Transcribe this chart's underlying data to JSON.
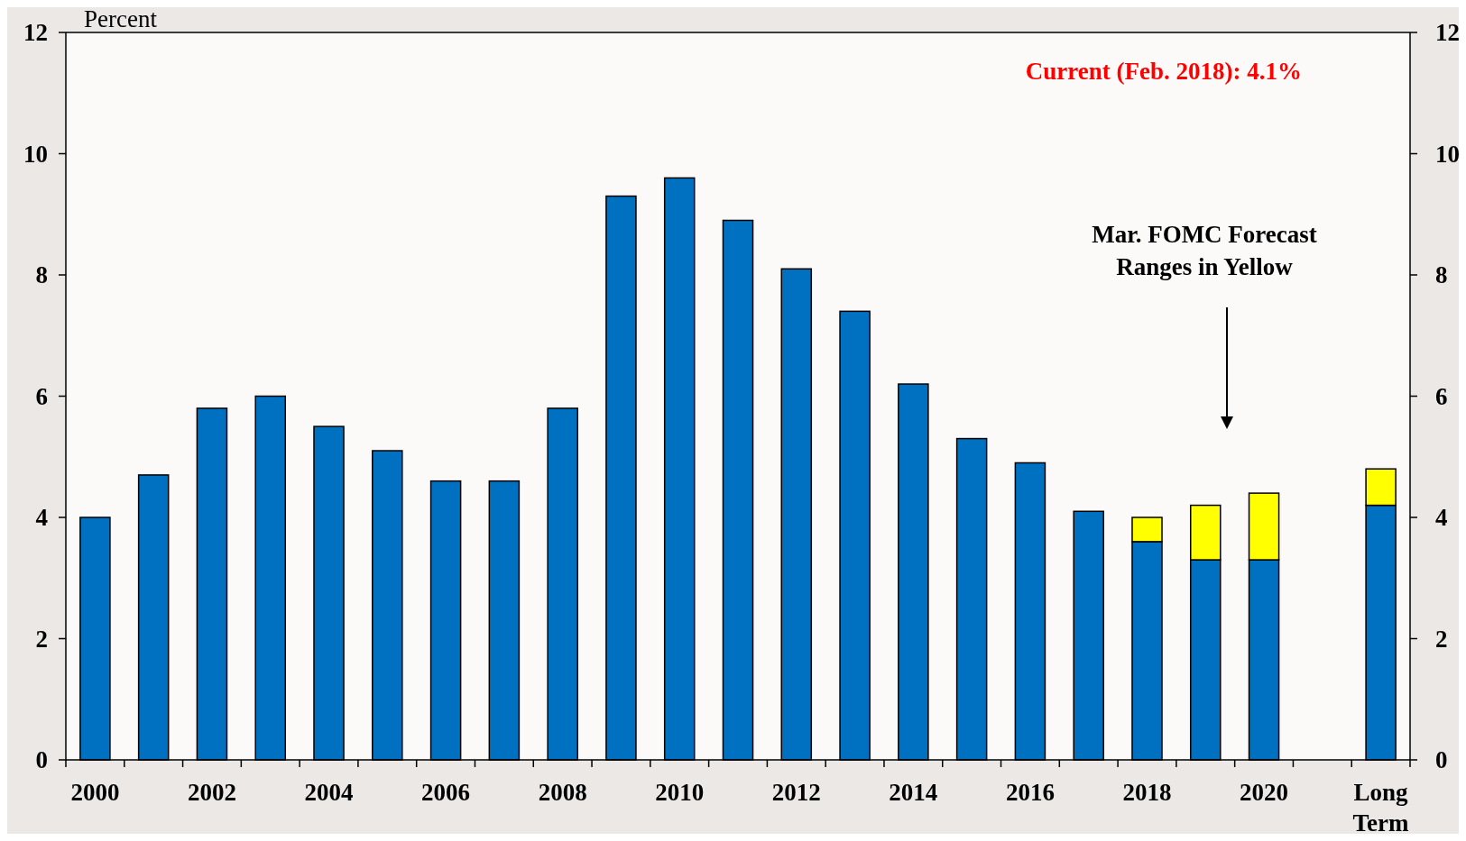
{
  "chart_data": {
    "type": "bar",
    "stacked": true,
    "ylabel": "Percent",
    "categories": [
      "2000",
      null,
      "2002",
      null,
      "2004",
      null,
      "2006",
      null,
      "2008",
      null,
      "2010",
      null,
      "2012",
      null,
      "2014",
      null,
      "2016",
      null,
      "2018",
      null,
      "2020",
      null,
      "Long Term"
    ],
    "series": [
      {
        "color": "#0070c0",
        "values": [
          4.0,
          4.7,
          5.8,
          6.0,
          5.5,
          5.1,
          4.6,
          4.6,
          5.8,
          9.3,
          9.6,
          8.9,
          8.1,
          7.4,
          6.2,
          5.3,
          4.9,
          4.1,
          3.6,
          3.3,
          3.3,
          null,
          4.2
        ]
      },
      {
        "color": "#ffff00",
        "values": [
          null,
          null,
          null,
          null,
          null,
          null,
          null,
          null,
          null,
          null,
          null,
          null,
          null,
          null,
          null,
          null,
          null,
          null,
          0.4,
          0.9,
          1.1,
          null,
          0.6
        ]
      }
    ],
    "ylim": [
      0,
      12
    ],
    "yticks": [
      0,
      2,
      4,
      6,
      8,
      10,
      12
    ],
    "y2lim": [
      0,
      12
    ],
    "y2ticks": [
      0,
      2,
      4,
      6,
      8,
      10,
      12
    ],
    "annotations": [
      "Current (Feb. 2018): 4.1%",
      "Mar. FOMC Forecast Ranges in Yellow"
    ],
    "grid": false
  }
}
